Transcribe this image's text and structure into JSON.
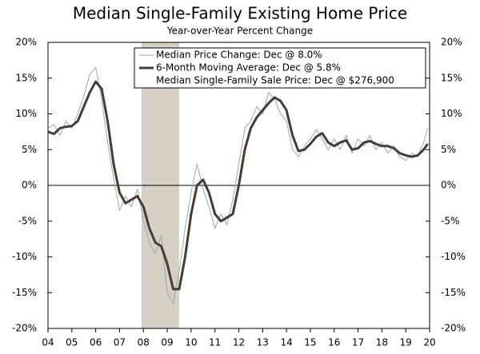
{
  "chart_data": {
    "type": "line",
    "title": "Median Single-Family Existing Home Price",
    "subtitle": "Year-over-Year Percent Change",
    "x": [
      4.0,
      4.25,
      4.5,
      4.75,
      5.0,
      5.25,
      5.5,
      5.75,
      6.0,
      6.25,
      6.5,
      6.75,
      7.0,
      7.25,
      7.5,
      7.75,
      8.0,
      8.25,
      8.5,
      8.75,
      9.0,
      9.25,
      9.5,
      9.75,
      10.0,
      10.25,
      10.5,
      10.75,
      11.0,
      11.25,
      11.5,
      11.75,
      12.0,
      12.25,
      12.5,
      12.75,
      13.0,
      13.25,
      13.5,
      13.75,
      14.0,
      14.25,
      14.5,
      14.75,
      15.0,
      15.25,
      15.5,
      15.75,
      16.0,
      16.25,
      16.5,
      16.75,
      17.0,
      17.25,
      17.5,
      17.75,
      18.0,
      18.25,
      18.5,
      18.75,
      19.0,
      19.25,
      19.5,
      19.75,
      19.92
    ],
    "series": [
      {
        "name": "Median Price Change: Dec @ 8.0%",
        "color": "#93aab8",
        "width": 1,
        "values": [
          8,
          8.5,
          7,
          9,
          8,
          10,
          12.5,
          15.5,
          16.5,
          12,
          6,
          1,
          -3.5,
          -1.5,
          -3,
          -0.5,
          -5,
          -8,
          -9.5,
          -7,
          -15,
          -16.5,
          -12,
          -6,
          -1,
          3,
          -0.5,
          -3,
          -6,
          -4,
          -5.5,
          -2,
          3,
          8,
          9,
          11,
          10,
          13,
          12,
          10,
          9,
          5,
          4,
          5.5,
          6.5,
          7.8,
          6.5,
          5,
          6.5,
          5,
          7,
          4.5,
          6.5,
          5.5,
          7,
          5,
          6,
          4.5,
          5.5,
          4,
          3.5,
          4.5,
          4,
          6,
          8
        ]
      },
      {
        "name": "6-Month Moving Average: Dec @ 5.8%",
        "color": "#4a3b2e",
        "width": 3,
        "values": [
          7.5,
          7.2,
          8,
          8.2,
          8.3,
          9,
          11,
          13,
          14.5,
          13.5,
          9,
          3,
          -1,
          -2.5,
          -2,
          -1.5,
          -3,
          -6,
          -8,
          -8.5,
          -11,
          -14.5,
          -14.5,
          -10,
          -4,
          0,
          0.8,
          -1,
          -4,
          -5,
          -4.5,
          -4,
          0,
          5,
          8,
          9.5,
          10.5,
          11.5,
          12.3,
          11.8,
          10.5,
          7,
          4.8,
          5,
          5.8,
          6.8,
          7.3,
          6,
          5.5,
          6,
          6.3,
          5,
          5.2,
          6,
          6.2,
          5.8,
          5.5,
          5.5,
          5.2,
          4.5,
          4.2,
          4,
          4.2,
          5,
          5.8
        ]
      }
    ],
    "legend_note": "Median Single-Family Sale Price: Dec @ $276,900",
    "recession": [
      7.92,
      9.5
    ],
    "recession_color": "#d6d0c4",
    "xlim": [
      4,
      20
    ],
    "xticks": [
      {
        "value": 4,
        "label": "04"
      },
      {
        "value": 5,
        "label": "05"
      },
      {
        "value": 6,
        "label": "06"
      },
      {
        "value": 7,
        "label": "07"
      },
      {
        "value": 8,
        "label": "08"
      },
      {
        "value": 9,
        "label": "09"
      },
      10,
      11,
      12,
      13,
      14,
      15,
      16,
      17,
      18,
      19,
      20
    ],
    "ylim": [
      -20,
      20
    ],
    "yticks": [
      {
        "value": -20,
        "label": "-20%"
      },
      {
        "value": -15,
        "label": "-15%"
      },
      {
        "value": -10,
        "label": "-10%"
      },
      {
        "value": -5,
        "label": "-5%"
      },
      {
        "value": 0,
        "label": "0%"
      },
      {
        "value": 5,
        "label": "5%"
      },
      {
        "value": 10,
        "label": "10%"
      },
      {
        "value": 15,
        "label": "15%"
      },
      {
        "value": 20,
        "label": "20%"
      }
    ],
    "y2lim": [
      -20,
      20
    ],
    "y2ticks": [
      {
        "value": -20,
        "label": "-20%"
      },
      {
        "value": -15,
        "label": "-15%"
      },
      {
        "value": -10,
        "label": "-10%"
      },
      {
        "value": -5,
        "label": "-5%"
      },
      {
        "value": 0,
        "label": "0%"
      },
      {
        "value": 5,
        "label": "5%"
      },
      {
        "value": 10,
        "label": "10%"
      },
      {
        "value": 15,
        "label": "15%"
      },
      {
        "value": 20,
        "label": "20%"
      }
    ]
  }
}
